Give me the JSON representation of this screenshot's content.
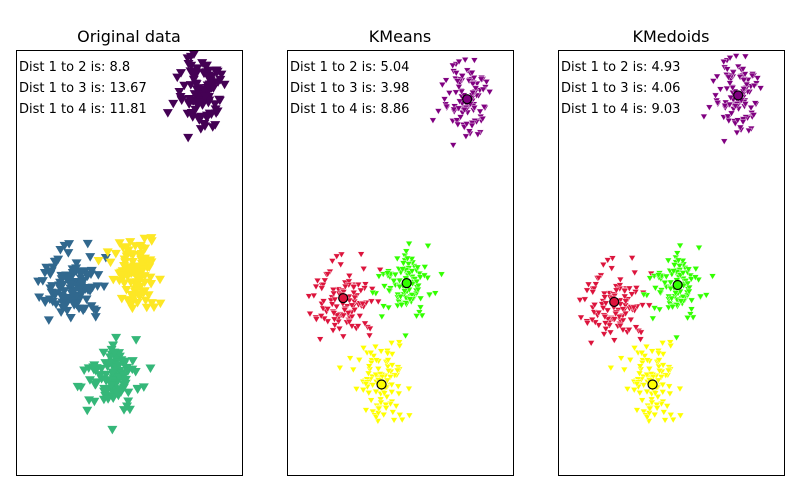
{
  "chart_data": [
    {
      "type": "scatter",
      "title": "Original data",
      "marker": "triangle-down",
      "annotations": [
        "Dist 1 to 2 is: 8.8",
        "Dist 1 to 3 is: 13.67",
        "Dist 1 to 4 is: 11.81"
      ],
      "grid": false,
      "axes_visible": false,
      "series": [
        {
          "color": "#440154",
          "center": [
            6.2,
            7.6
          ],
          "spread": [
            0.75,
            0.95
          ],
          "count": 110
        },
        {
          "color": "#31688e",
          "center": [
            -2.7,
            -2.6
          ],
          "spread": [
            0.95,
            0.9
          ],
          "count": 110
        },
        {
          "color": "#35b779",
          "center": [
            0.2,
            -7.6
          ],
          "spread": [
            0.9,
            0.95
          ],
          "count": 110
        },
        {
          "color": "#fde725",
          "center": [
            1.7,
            -2.2
          ],
          "spread": [
            0.8,
            0.85
          ],
          "count": 110
        }
      ]
    },
    {
      "type": "scatter",
      "title": "KMeans",
      "marker": "triangle-down",
      "annotations": [
        "Dist 1 to 2 is: 5.04",
        "Dist 1 to 3 is: 3.98",
        "Dist 1 to 4 is: 8.86"
      ],
      "grid": false,
      "axes_visible": false,
      "series": [
        {
          "color": "#800080",
          "center": [
            5.8,
            7.2
          ],
          "spread": [
            0.75,
            0.95
          ],
          "count": 110,
          "centroid": [
            5.8,
            7.2
          ]
        },
        {
          "color": "#dc143c",
          "center": [
            -2.6,
            -3.4
          ],
          "spread": [
            1.0,
            1.0
          ],
          "count": 110,
          "centroid": [
            -2.6,
            -3.4
          ]
        },
        {
          "color": "#32ff00",
          "center": [
            1.7,
            -2.6
          ],
          "spread": [
            0.85,
            0.95
          ],
          "count": 110,
          "centroid": [
            1.7,
            -2.6
          ]
        },
        {
          "color": "#ffff00",
          "center": [
            0.0,
            -8.0
          ],
          "spread": [
            0.9,
            0.95
          ],
          "count": 110,
          "centroid": [
            0.0,
            -8.0
          ]
        }
      ]
    },
    {
      "type": "scatter",
      "title": "KMedoids",
      "marker": "triangle-down",
      "annotations": [
        "Dist 1 to 2 is: 4.93",
        "Dist 1 to 3 is: 4.06",
        "Dist 1 to 4 is: 9.03"
      ],
      "grid": false,
      "axes_visible": false,
      "series": [
        {
          "color": "#800080",
          "center": [
            5.8,
            7.4
          ],
          "spread": [
            0.75,
            0.95
          ],
          "count": 110,
          "medoid": [
            5.8,
            7.4
          ]
        },
        {
          "color": "#dc143c",
          "center": [
            -2.6,
            -3.6
          ],
          "spread": [
            1.0,
            1.0
          ],
          "count": 110,
          "medoid": [
            -2.6,
            -3.6
          ]
        },
        {
          "color": "#32ff00",
          "center": [
            1.7,
            -2.7
          ],
          "spread": [
            0.85,
            0.95
          ],
          "count": 110,
          "medoid": [
            1.7,
            -2.7
          ]
        },
        {
          "color": "#ffff00",
          "center": [
            0.0,
            -8.0
          ],
          "spread": [
            0.9,
            0.95
          ],
          "count": 110,
          "medoid": [
            0.0,
            -8.0
          ]
        }
      ]
    }
  ]
}
